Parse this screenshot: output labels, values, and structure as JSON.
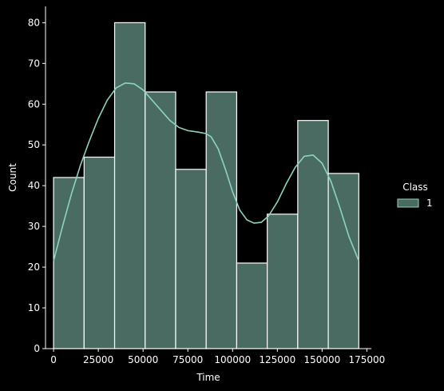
{
  "chart_data": {
    "type": "bar",
    "subtype": "histogram-with-kde",
    "title": "",
    "xlabel": "Time",
    "ylabel": "Count",
    "xlim": [
      -4500,
      177500
    ],
    "ylim": [
      0,
      84
    ],
    "xticks": [
      0,
      25000,
      50000,
      75000,
      100000,
      125000,
      150000,
      175000
    ],
    "yticks": [
      0,
      10,
      20,
      30,
      40,
      50,
      60,
      70,
      80
    ],
    "bins": [
      {
        "x0": 0,
        "x1": 17050,
        "count": 42
      },
      {
        "x0": 17050,
        "x1": 34100,
        "count": 47
      },
      {
        "x0": 34100,
        "x1": 51150,
        "count": 80
      },
      {
        "x0": 51150,
        "x1": 68200,
        "count": 63
      },
      {
        "x0": 68200,
        "x1": 85250,
        "count": 44
      },
      {
        "x0": 85250,
        "x1": 102300,
        "count": 63
      },
      {
        "x0": 102300,
        "x1": 119350,
        "count": 21
      },
      {
        "x0": 119350,
        "x1": 136400,
        "count": 33
      },
      {
        "x0": 136400,
        "x1": 153450,
        "count": 56
      },
      {
        "x0": 153450,
        "x1": 170500,
        "count": 43
      }
    ],
    "kde": [
      [
        0,
        21.5
      ],
      [
        5000,
        30
      ],
      [
        10000,
        38
      ],
      [
        15000,
        45
      ],
      [
        20000,
        51
      ],
      [
        25000,
        56.5
      ],
      [
        30000,
        61
      ],
      [
        35000,
        64
      ],
      [
        40000,
        65.2
      ],
      [
        45000,
        65
      ],
      [
        50000,
        63.5
      ],
      [
        55000,
        61
      ],
      [
        60000,
        58.5
      ],
      [
        65000,
        56
      ],
      [
        70000,
        54.3
      ],
      [
        75000,
        53.5
      ],
      [
        80000,
        53.2
      ],
      [
        85000,
        52.8
      ],
      [
        88000,
        52
      ],
      [
        92000,
        49
      ],
      [
        96000,
        44
      ],
      [
        100000,
        38.5
      ],
      [
        104000,
        34
      ],
      [
        108000,
        31.6
      ],
      [
        112000,
        30.8
      ],
      [
        116000,
        31
      ],
      [
        120000,
        32.5
      ],
      [
        125000,
        36
      ],
      [
        130000,
        40.5
      ],
      [
        135000,
        44.5
      ],
      [
        140000,
        47.2
      ],
      [
        145000,
        47.5
      ],
      [
        150000,
        45.5
      ],
      [
        155000,
        41
      ],
      [
        160000,
        34.5
      ],
      [
        165000,
        27.5
      ],
      [
        170500,
        21.5
      ]
    ],
    "bar_color": "#4a6b62",
    "bar_edge_color": "#ffffff",
    "line_color": "#8dd3c0",
    "legend": {
      "title": "Class",
      "entries": [
        {
          "label": "1",
          "color": "#4a6b62"
        }
      ],
      "placement": "right"
    },
    "grid": false
  }
}
